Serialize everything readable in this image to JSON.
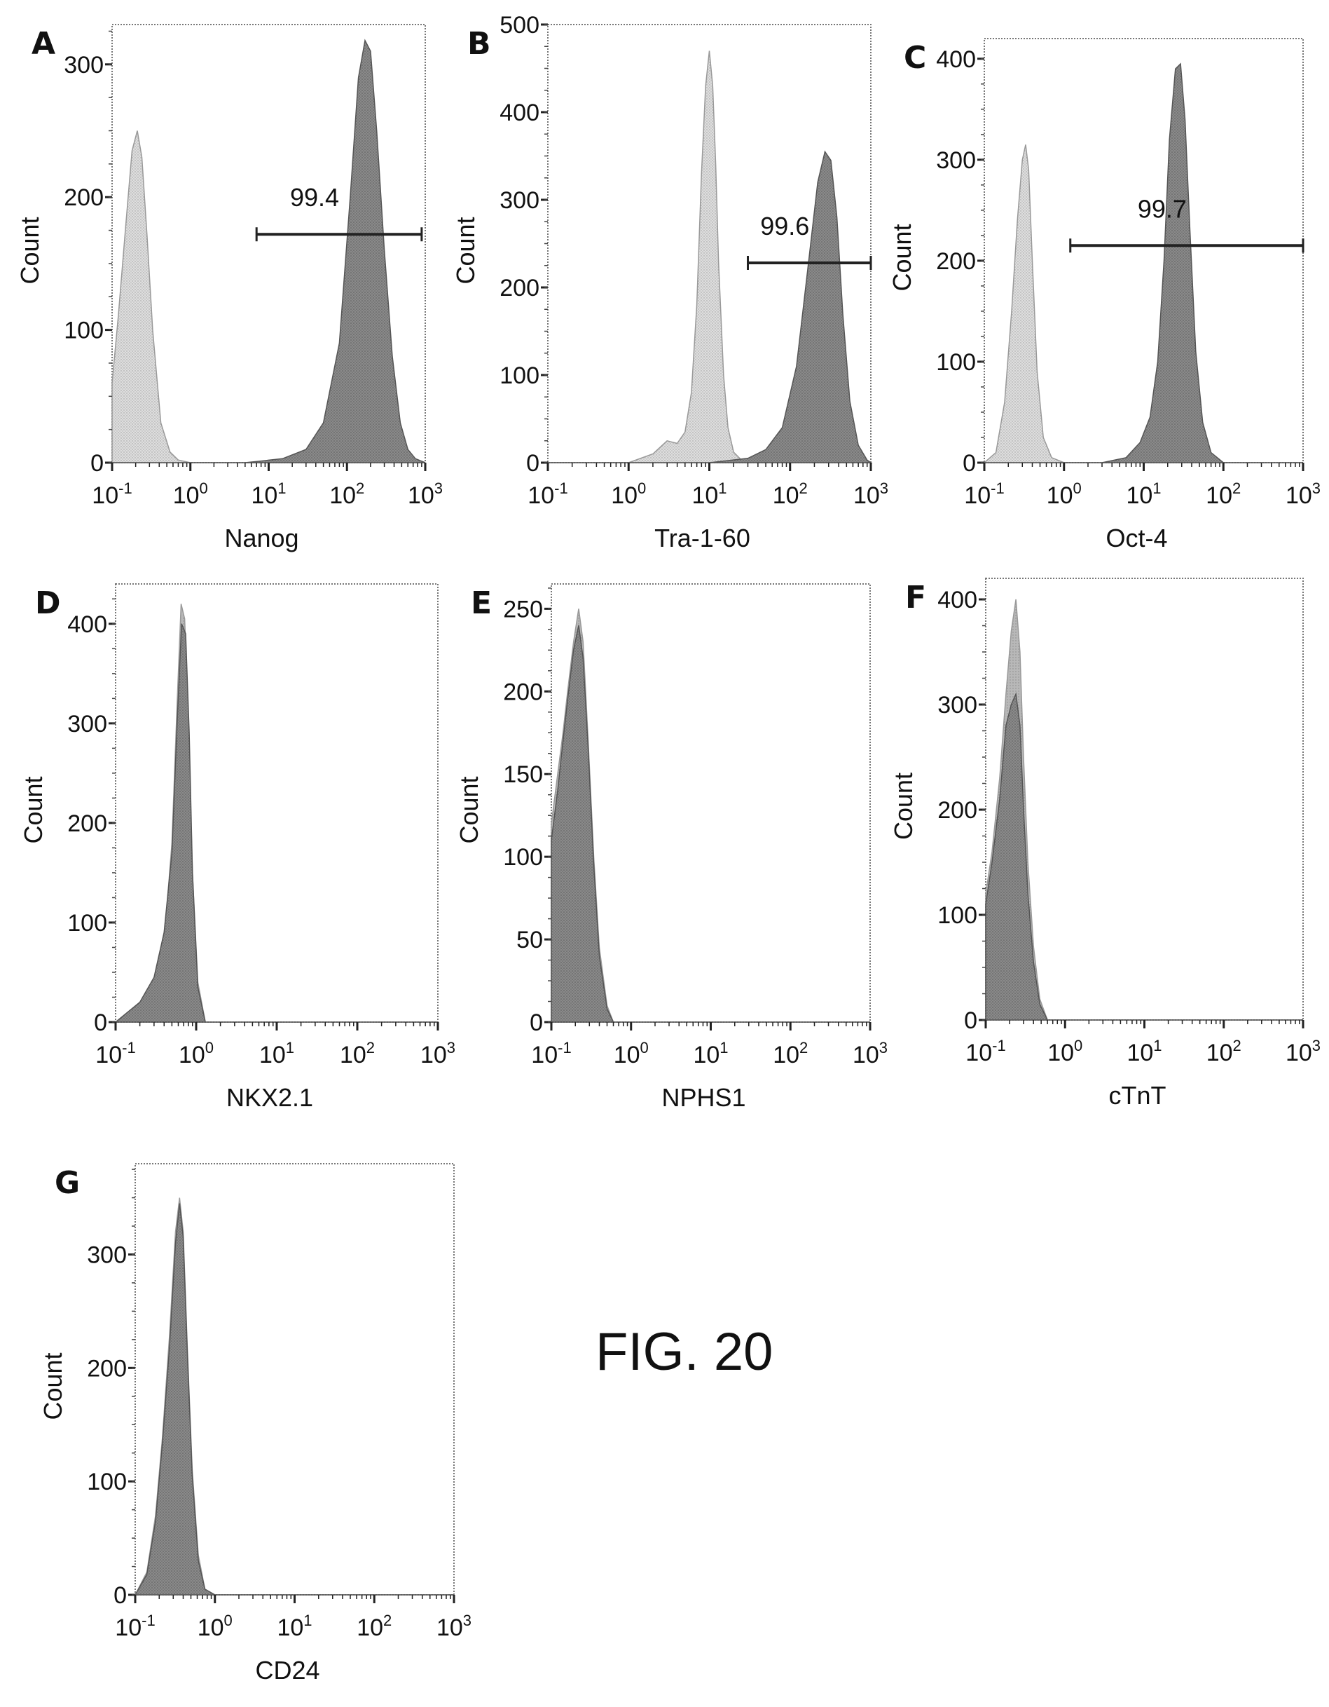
{
  "figure_label": "FIG. 20",
  "chart_data": [
    {
      "type": "histogram",
      "panel": "A",
      "xlabel": "Nanog",
      "ylabel": "Count",
      "x_scale": "log",
      "xlim": [
        0.1,
        1000
      ],
      "ylim": [
        0,
        330
      ],
      "y_ticks": [
        0,
        100,
        200,
        300
      ],
      "x_tick_labels": [
        "10",
        "10",
        "10",
        "10",
        "10"
      ],
      "x_tick_exponents": [
        "-1",
        "0",
        "1",
        "2",
        "3"
      ],
      "series": [
        {
          "fill": "#d4d4d4",
          "x": [
            0.1,
            0.12,
            0.15,
            0.18,
            0.21,
            0.24,
            0.28,
            0.33,
            0.42,
            0.55,
            0.7,
            1,
            10,
            1000
          ],
          "y": [
            60,
            110,
            180,
            235,
            250,
            230,
            170,
            100,
            30,
            8,
            2,
            0,
            0,
            0
          ]
        },
        {
          "fill": "#7d7d7d",
          "x": [
            0.1,
            5,
            15,
            30,
            50,
            80,
            110,
            140,
            170,
            200,
            240,
            300,
            380,
            480,
            600,
            750,
            1000
          ],
          "y": [
            0,
            0,
            3,
            10,
            30,
            90,
            200,
            290,
            318,
            310,
            250,
            160,
            80,
            30,
            10,
            3,
            0
          ]
        }
      ],
      "gate": {
        "label": "99.4",
        "range": [
          7,
          900
        ],
        "y": 172
      }
    },
    {
      "type": "histogram",
      "panel": "B",
      "xlabel": "Tra-1-60",
      "ylabel": "Count",
      "x_scale": "log",
      "xlim": [
        0.1,
        1000
      ],
      "ylim": [
        0,
        500
      ],
      "y_ticks": [
        0,
        100,
        200,
        300,
        400,
        500
      ],
      "x_tick_labels": [
        "10",
        "10",
        "10",
        "10",
        "10"
      ],
      "x_tick_exponents": [
        "-1",
        "0",
        "1",
        "2",
        "3"
      ],
      "series": [
        {
          "fill": "#d4d4d4",
          "x": [
            0.1,
            1,
            2,
            3,
            4,
            5,
            6,
            7,
            8,
            9,
            10,
            11,
            12,
            13,
            15,
            17,
            20,
            25,
            35,
            1000
          ],
          "y": [
            0,
            0,
            10,
            25,
            22,
            35,
            80,
            180,
            330,
            430,
            470,
            430,
            340,
            230,
            100,
            40,
            12,
            3,
            0,
            0
          ]
        },
        {
          "fill": "#7d7d7d",
          "x": [
            0.1,
            10,
            30,
            50,
            80,
            120,
            170,
            220,
            270,
            320,
            380,
            450,
            550,
            700,
            900,
            1000
          ],
          "y": [
            0,
            0,
            5,
            15,
            40,
            110,
            230,
            320,
            355,
            345,
            280,
            170,
            70,
            20,
            3,
            0
          ]
        }
      ],
      "gate": {
        "label": "99.6",
        "range": [
          30,
          1000
        ],
        "y": 228
      }
    },
    {
      "type": "histogram",
      "panel": "C",
      "xlabel": "Oct-4",
      "ylabel": "Count",
      "x_scale": "log",
      "xlim": [
        0.1,
        1000
      ],
      "ylim": [
        0,
        420
      ],
      "y_ticks": [
        0,
        100,
        200,
        300,
        400
      ],
      "x_tick_labels": [
        "10",
        "10",
        "10",
        "10",
        "10"
      ],
      "x_tick_exponents": [
        "-1",
        "0",
        "1",
        "2",
        "3"
      ],
      "series": [
        {
          "fill": "#d4d4d4",
          "x": [
            0.1,
            0.14,
            0.18,
            0.22,
            0.26,
            0.3,
            0.33,
            0.36,
            0.4,
            0.46,
            0.55,
            0.7,
            1,
            1000
          ],
          "y": [
            0,
            10,
            60,
            150,
            240,
            300,
            315,
            290,
            200,
            90,
            25,
            5,
            0,
            0
          ]
        },
        {
          "fill": "#7d7d7d",
          "x": [
            0.1,
            3,
            6,
            9,
            12,
            15,
            18,
            21,
            25,
            29,
            33,
            38,
            45,
            55,
            70,
            100,
            1000
          ],
          "y": [
            0,
            0,
            5,
            20,
            45,
            100,
            200,
            320,
            390,
            395,
            340,
            230,
            110,
            40,
            10,
            0,
            0
          ]
        }
      ],
      "gate": {
        "label": "99.7",
        "range": [
          1.2,
          1000
        ],
        "y": 215
      }
    },
    {
      "type": "histogram",
      "panel": "D",
      "xlabel": "NKX2.1",
      "ylabel": "Count",
      "x_scale": "log",
      "xlim": [
        0.1,
        1000
      ],
      "ylim": [
        0,
        440
      ],
      "y_ticks": [
        0,
        100,
        200,
        300,
        400
      ],
      "x_tick_labels": [
        "10",
        "10",
        "10",
        "10",
        "10"
      ],
      "x_tick_exponents": [
        "-1",
        "0",
        "1",
        "2",
        "3"
      ],
      "series": [
        {
          "fill": "#c4c4c4",
          "x": [
            0.1,
            0.18,
            0.3,
            0.4,
            0.5,
            0.58,
            0.65,
            0.72,
            0.8,
            0.9,
            1.05,
            1.3,
            1000
          ],
          "y": [
            0,
            10,
            35,
            80,
            180,
            320,
            420,
            405,
            300,
            150,
            40,
            0,
            0
          ]
        },
        {
          "fill": "#7d7d7d",
          "x": [
            0.1,
            0.2,
            0.3,
            0.4,
            0.5,
            0.58,
            0.66,
            0.74,
            0.82,
            0.9,
            1.05,
            1.3,
            1000
          ],
          "y": [
            0,
            20,
            45,
            90,
            170,
            300,
            400,
            390,
            290,
            150,
            35,
            0,
            0
          ]
        }
      ]
    },
    {
      "type": "histogram",
      "panel": "E",
      "xlabel": "NPHS1",
      "ylabel": "Count",
      "x_scale": "log",
      "xlim": [
        0.1,
        1000
      ],
      "ylim": [
        0,
        265
      ],
      "y_ticks": [
        0,
        50,
        100,
        150,
        200,
        250
      ],
      "x_tick_labels": [
        "10",
        "10",
        "10",
        "10",
        "10"
      ],
      "x_tick_exponents": [
        "-1",
        "0",
        "1",
        "2",
        "3"
      ],
      "series": [
        {
          "fill": "#c4c4c4",
          "x": [
            0.1,
            0.12,
            0.14,
            0.16,
            0.19,
            0.22,
            0.25,
            0.29,
            0.34,
            0.4,
            0.5,
            0.6,
            1000
          ],
          "y": [
            120,
            150,
            175,
            200,
            230,
            250,
            230,
            170,
            100,
            45,
            10,
            0,
            0
          ]
        },
        {
          "fill": "#7d7d7d",
          "x": [
            0.1,
            0.12,
            0.14,
            0.16,
            0.19,
            0.22,
            0.25,
            0.29,
            0.34,
            0.4,
            0.5,
            0.6,
            1000
          ],
          "y": [
            110,
            140,
            170,
            195,
            225,
            240,
            220,
            165,
            95,
            40,
            8,
            0,
            0
          ]
        }
      ]
    },
    {
      "type": "histogram",
      "panel": "F",
      "xlabel": "cTnT",
      "ylabel": "Count",
      "x_scale": "log",
      "xlim": [
        0.1,
        1000
      ],
      "ylim": [
        0,
        420
      ],
      "y_ticks": [
        0,
        100,
        200,
        300,
        400
      ],
      "x_tick_labels": [
        "10",
        "10",
        "10",
        "10",
        "10"
      ],
      "x_tick_exponents": [
        "-1",
        "0",
        "1",
        "2",
        "3"
      ],
      "series": [
        {
          "fill": "#c4c4c4",
          "x": [
            0.1,
            0.12,
            0.15,
            0.18,
            0.21,
            0.24,
            0.27,
            0.3,
            0.34,
            0.4,
            0.48,
            0.6,
            1000
          ],
          "y": [
            120,
            160,
            230,
            310,
            370,
            400,
            350,
            250,
            150,
            70,
            20,
            0,
            0
          ]
        },
        {
          "fill": "#7d7d7d",
          "x": [
            0.1,
            0.12,
            0.15,
            0.18,
            0.21,
            0.24,
            0.27,
            0.3,
            0.34,
            0.4,
            0.48,
            0.6,
            1000
          ],
          "y": [
            110,
            150,
            210,
            280,
            300,
            310,
            280,
            200,
            120,
            55,
            15,
            0,
            0
          ]
        }
      ]
    },
    {
      "type": "histogram",
      "panel": "G",
      "xlabel": "CD24",
      "ylabel": "Count",
      "x_scale": "log",
      "xlim": [
        0.1,
        1000
      ],
      "ylim": [
        0,
        380
      ],
      "y_ticks": [
        0,
        100,
        200,
        300
      ],
      "x_tick_labels": [
        "10",
        "10",
        "10",
        "10",
        "10"
      ],
      "x_tick_exponents": [
        "-1",
        "0",
        "1",
        "2",
        "3"
      ],
      "series": [
        {
          "fill": "#c4c4c4",
          "x": [
            0.1,
            0.14,
            0.18,
            0.22,
            0.27,
            0.32,
            0.36,
            0.4,
            0.45,
            0.52,
            0.62,
            0.75,
            1,
            1000
          ],
          "y": [
            0,
            20,
            70,
            140,
            230,
            320,
            350,
            320,
            220,
            110,
            35,
            5,
            0,
            0
          ]
        },
        {
          "fill": "#7d7d7d",
          "x": [
            0.1,
            0.14,
            0.18,
            0.22,
            0.27,
            0.32,
            0.36,
            0.4,
            0.45,
            0.52,
            0.62,
            0.75,
            1,
            1000
          ],
          "y": [
            0,
            18,
            65,
            135,
            220,
            310,
            345,
            315,
            215,
            105,
            30,
            5,
            0,
            0
          ]
        }
      ]
    }
  ]
}
